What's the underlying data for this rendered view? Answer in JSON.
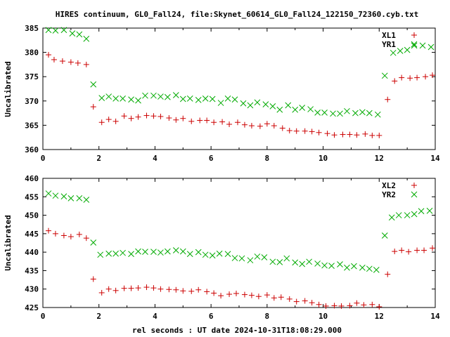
{
  "title": "HIRES continuum, GL0_Fall24, file:Skynet_60614_GL0_Fall24_122150_72360.cyb.txt",
  "xlabel": "rel seconds : UT date 2024-10-31T18:08:29.000",
  "chart_data": [
    {
      "type": "scatter",
      "ylabel": "Uncalibrated",
      "xlim": [
        0,
        14
      ],
      "ylim": [
        360,
        385
      ],
      "xticks": [
        0,
        2,
        4,
        6,
        8,
        10,
        12,
        14
      ],
      "yticks": [
        360,
        365,
        370,
        375,
        380,
        385
      ],
      "legend_position": "top-right",
      "series": [
        {
          "name": "XL1",
          "marker": "plus",
          "color": "#cc0000",
          "x": [
            0.2,
            0.4,
            0.7,
            1.0,
            1.25,
            1.55,
            1.8,
            2.1,
            2.35,
            2.6,
            2.9,
            3.15,
            3.4,
            3.7,
            3.95,
            4.2,
            4.5,
            4.75,
            5.0,
            5.3,
            5.6,
            5.85,
            6.1,
            6.4,
            6.65,
            6.95,
            7.2,
            7.45,
            7.75,
            8.0,
            8.25,
            8.55,
            8.8,
            9.05,
            9.35,
            9.6,
            9.85,
            10.15,
            10.4,
            10.7,
            10.95,
            11.2,
            11.5,
            11.75,
            12.0,
            12.3,
            12.55,
            12.8,
            13.1,
            13.35,
            13.65,
            13.9
          ],
          "y": [
            379.5,
            378.5,
            378.2,
            378.0,
            377.8,
            377.5,
            368.8,
            365.6,
            366.2,
            365.8,
            366.9,
            366.4,
            366.7,
            367.0,
            366.9,
            366.8,
            366.5,
            366.1,
            366.4,
            365.8,
            366.0,
            366.0,
            365.6,
            365.7,
            365.2,
            365.6,
            365.1,
            364.9,
            364.8,
            365.3,
            364.9,
            364.4,
            363.9,
            363.8,
            363.8,
            363.7,
            363.5,
            363.3,
            363.0,
            363.1,
            363.1,
            363.0,
            363.2,
            362.9,
            362.9,
            370.3,
            374.1,
            374.8,
            374.7,
            374.8,
            375.0,
            375.3
          ]
        },
        {
          "name": "YR1",
          "marker": "cross",
          "color": "#00aa00",
          "x": [
            0.2,
            0.45,
            0.75,
            1.05,
            1.3,
            1.55,
            1.8,
            2.1,
            2.35,
            2.6,
            2.85,
            3.15,
            3.4,
            3.65,
            3.95,
            4.2,
            4.45,
            4.75,
            5.0,
            5.25,
            5.55,
            5.8,
            6.05,
            6.35,
            6.6,
            6.85,
            7.15,
            7.4,
            7.65,
            7.95,
            8.2,
            8.45,
            8.75,
            9.0,
            9.25,
            9.55,
            9.8,
            10.05,
            10.35,
            10.6,
            10.85,
            11.15,
            11.4,
            11.65,
            11.95,
            12.2,
            12.5,
            12.75,
            13.0,
            13.25,
            13.55,
            13.85
          ],
          "y": [
            384.6,
            384.5,
            384.6,
            383.9,
            383.7,
            382.8,
            373.4,
            370.6,
            370.9,
            370.5,
            370.5,
            370.3,
            370.1,
            371.1,
            371.1,
            370.9,
            370.8,
            371.2,
            370.4,
            370.5,
            370.2,
            370.5,
            370.4,
            369.6,
            370.5,
            370.3,
            369.5,
            369.1,
            369.7,
            369.3,
            368.9,
            368.2,
            369.1,
            368.2,
            368.6,
            368.3,
            367.6,
            367.6,
            367.4,
            367.4,
            367.9,
            367.5,
            367.7,
            367.5,
            367.2,
            375.2,
            379.9,
            380.3,
            380.5,
            381.4,
            381.4,
            381.1
          ]
        }
      ]
    },
    {
      "type": "scatter",
      "ylabel": "Uncalibrated",
      "xlim": [
        0,
        14
      ],
      "ylim": [
        425,
        460
      ],
      "xticks": [
        0,
        2,
        4,
        6,
        8,
        10,
        12,
        14
      ],
      "yticks": [
        425,
        430,
        435,
        440,
        445,
        450,
        455,
        460
      ],
      "legend_position": "top-right",
      "series": [
        {
          "name": "XL2",
          "marker": "plus",
          "color": "#cc0000",
          "x": [
            0.2,
            0.45,
            0.75,
            1.0,
            1.3,
            1.55,
            1.8,
            2.1,
            2.35,
            2.6,
            2.9,
            3.15,
            3.4,
            3.7,
            3.95,
            4.2,
            4.5,
            4.75,
            5.0,
            5.3,
            5.55,
            5.85,
            6.1,
            6.35,
            6.65,
            6.9,
            7.2,
            7.45,
            7.7,
            8.0,
            8.25,
            8.5,
            8.8,
            9.05,
            9.35,
            9.6,
            9.85,
            10.1,
            10.4,
            10.65,
            10.95,
            11.2,
            11.45,
            11.75,
            12.0,
            12.3,
            12.55,
            12.8,
            13.05,
            13.35,
            13.6,
            13.9
          ],
          "y": [
            445.8,
            445.0,
            444.5,
            444.2,
            444.8,
            443.8,
            432.7,
            429.0,
            430.0,
            429.6,
            430.2,
            430.2,
            430.3,
            430.5,
            430.3,
            430.0,
            429.9,
            429.8,
            429.5,
            429.4,
            429.8,
            429.3,
            428.9,
            428.2,
            428.6,
            428.8,
            428.5,
            428.3,
            428.0,
            428.4,
            427.6,
            427.8,
            427.3,
            426.6,
            426.8,
            426.3,
            425.8,
            425.4,
            425.5,
            425.4,
            425.5,
            426.2,
            425.7,
            425.8,
            425.2,
            434.0,
            440.2,
            440.5,
            440.1,
            440.5,
            440.5,
            441.1
          ]
        },
        {
          "name": "YR2",
          "marker": "cross",
          "color": "#00aa00",
          "x": [
            0.2,
            0.45,
            0.75,
            1.0,
            1.3,
            1.55,
            1.8,
            2.05,
            2.35,
            2.6,
            2.85,
            3.15,
            3.4,
            3.65,
            3.95,
            4.2,
            4.45,
            4.75,
            5.0,
            5.25,
            5.55,
            5.8,
            6.05,
            6.3,
            6.6,
            6.85,
            7.1,
            7.4,
            7.65,
            7.9,
            8.2,
            8.45,
            8.7,
            9.0,
            9.25,
            9.5,
            9.8,
            10.05,
            10.3,
            10.6,
            10.85,
            11.1,
            11.4,
            11.65,
            11.9,
            12.2,
            12.45,
            12.7,
            13.0,
            13.25,
            13.5,
            13.8
          ],
          "y": [
            455.9,
            455.3,
            455.1,
            454.6,
            454.6,
            454.2,
            442.6,
            439.3,
            439.6,
            439.6,
            439.8,
            439.5,
            440.2,
            440.1,
            440.1,
            439.9,
            440.2,
            440.5,
            440.2,
            439.5,
            440.0,
            439.3,
            439.1,
            439.6,
            439.5,
            438.4,
            438.3,
            437.8,
            438.8,
            438.6,
            437.4,
            437.3,
            438.3,
            437.2,
            436.8,
            437.4,
            436.9,
            436.4,
            436.3,
            436.7,
            435.8,
            436.2,
            435.8,
            435.5,
            435.2,
            444.5,
            449.4,
            450.0,
            450.0,
            450.3,
            451.1,
            451.2
          ]
        }
      ]
    }
  ]
}
